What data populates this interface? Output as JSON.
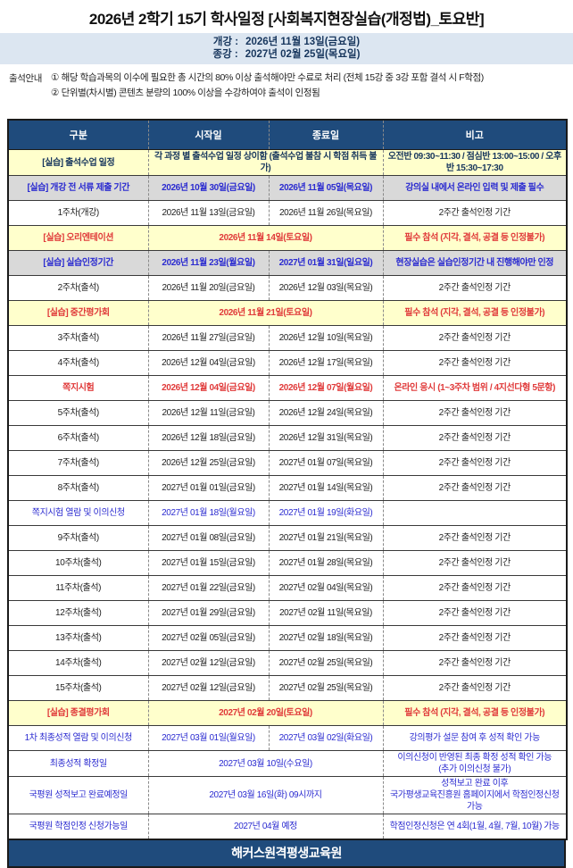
{
  "title": "2026년 2학기 15기 학사일정 [사회복지현장실습(개정법)_토요반]",
  "term": {
    "start_label": "개강 :",
    "start_value": "2026년 11월 13일(금요일)",
    "end_label": "종강 :",
    "end_value": "2027년 02월 25일(목요일)"
  },
  "notice": {
    "label": "출석안내",
    "lines": [
      "① 해당 학습과목의 이수에 필요한 총 시간의 80% 이상 출석해야만 수료로 처리 (전체 15강 중 3강 포함 결석 시 F학점)",
      "② 단위별(차시별) 콘텐츠 분량의 100% 이상을 수강하여야 출석이 인정됨"
    ]
  },
  "table": {
    "headers": [
      "구분",
      "시작일",
      "종료일",
      "비고"
    ],
    "rows": [
      {
        "category": "[실습] 출석수업 일정",
        "start": "각 과정 별 출석수업 일정 상이함 (출석수업 불참 시 학점 취득 불가)",
        "end": "",
        "remark": "오전반 09:30~11:30 / 점심반 13:00~15:00 / 오후반 15:30~17:30",
        "style": "yellow-navy",
        "merged": true
      },
      {
        "category": "[실습] 개강 전 서류 제출 기간",
        "start": "2026년 10월 30일(금요일)",
        "end": "2026년 11월 05일(목요일)",
        "remark": "강의실 내에서 온라인 입력 및 제출 필수",
        "style": "gray-blue",
        "merged": false
      },
      {
        "category": "1주차(개강)",
        "start": "2026년 11월 13일(금요일)",
        "end": "2026년 11월 26일(목요일)",
        "remark": "2주간 출석인정 기간",
        "style": "white-black",
        "merged": false
      },
      {
        "category": "[실습] 오리엔테이션",
        "start": "2026년 11월 14일(토요일)",
        "end": "",
        "remark": "필수 참석 (지각, 결석, 공결 등 인정불가)",
        "style": "yellow-red",
        "merged": true
      },
      {
        "category": "[실습] 실습인정기간",
        "start": "2026년 11월 23일(월요일)",
        "end": "2027년 01월 31일(일요일)",
        "remark": "현장실습은 실습인정기간 내 진행해야만 인정",
        "style": "gray-blue",
        "merged": false
      },
      {
        "category": "2주차(출석)",
        "start": "2026년 11월 20일(금요일)",
        "end": "2026년 12월 03일(목요일)",
        "remark": "2주간 출석인정 기간",
        "style": "white-black",
        "merged": false
      },
      {
        "category": "[실습] 중간평가회",
        "start": "2026년 11월 21일(토요일)",
        "end": "",
        "remark": "필수 참석 (지각, 결석, 공결 등 인정불가)",
        "style": "yellow-red",
        "merged": true
      },
      {
        "category": "3주차(출석)",
        "start": "2026년 11월 27일(금요일)",
        "end": "2026년 12월 10일(목요일)",
        "remark": "2주간 출석인정 기간",
        "style": "white-black",
        "merged": false
      },
      {
        "category": "4주차(출석)",
        "start": "2026년 12월 04일(금요일)",
        "end": "2026년 12월 17일(목요일)",
        "remark": "2주간 출석인정 기간",
        "style": "white-black",
        "merged": false
      },
      {
        "category": "쪽지시험",
        "start": "2026년 12월 04일(금요일)",
        "end": "2026년 12월 07일(월요일)",
        "remark": "온라인 응시 (1~3주차 범위 / 4지선다형 5문항)",
        "style": "white-red",
        "merged": false
      },
      {
        "category": "5주차(출석)",
        "start": "2026년 12월 11일(금요일)",
        "end": "2026년 12월 24일(목요일)",
        "remark": "2주간 출석인정 기간",
        "style": "white-black",
        "merged": false
      },
      {
        "category": "6주차(출석)",
        "start": "2026년 12월 18일(금요일)",
        "end": "2026년 12월 31일(목요일)",
        "remark": "2주간 출석인정 기간",
        "style": "white-black",
        "merged": false
      },
      {
        "category": "7주차(출석)",
        "start": "2026년 12월 25일(금요일)",
        "end": "2027년 01월 07일(목요일)",
        "remark": "2주간 출석인정 기간",
        "style": "white-black",
        "merged": false
      },
      {
        "category": "8주차(출석)",
        "start": "2027년 01월 01일(금요일)",
        "end": "2027년 01월 14일(목요일)",
        "remark": "2주간 출석인정 기간",
        "style": "white-black",
        "merged": false
      },
      {
        "category": "쪽지시험 열람 및 이의신청",
        "start": "2027년 01월 18일(월요일)",
        "end": "2027년 01월 19일(화요일)",
        "remark": "",
        "style": "white-blue",
        "merged": false
      },
      {
        "category": "9주차(출석)",
        "start": "2027년 01월 08일(금요일)",
        "end": "2027년 01월 21일(목요일)",
        "remark": "2주간 출석인정 기간",
        "style": "white-black",
        "merged": false
      },
      {
        "category": "10주차(출석)",
        "start": "2027년 01월 15일(금요일)",
        "end": "2027년 01월 28일(목요일)",
        "remark": "2주간 출석인정 기간",
        "style": "white-black",
        "merged": false
      },
      {
        "category": "11주차(출석)",
        "start": "2027년 01월 22일(금요일)",
        "end": "2027년 02월 04일(목요일)",
        "remark": "2주간 출석인정 기간",
        "style": "white-black",
        "merged": false
      },
      {
        "category": "12주차(출석)",
        "start": "2027년 01월 29일(금요일)",
        "end": "2027년 02월 11일(목요일)",
        "remark": "2주간 출석인정 기간",
        "style": "white-black",
        "merged": false
      },
      {
        "category": "13주차(출석)",
        "start": "2027년 02월 05일(금요일)",
        "end": "2027년 02월 18일(목요일)",
        "remark": "2주간 출석인정 기간",
        "style": "white-black",
        "merged": false
      },
      {
        "category": "14주차(출석)",
        "start": "2027년 02월 12일(금요일)",
        "end": "2027년 02월 25일(목요일)",
        "remark": "2주간 출석인정 기간",
        "style": "white-black",
        "merged": false
      },
      {
        "category": "15주차(출석)",
        "start": "2027년 02월 12일(금요일)",
        "end": "2027년 02월 25일(목요일)",
        "remark": "2주간 출석인정 기간",
        "style": "white-black",
        "merged": false
      },
      {
        "category": "[실습] 종결평가회",
        "start": "2027년 02월 20일(토요일)",
        "end": "",
        "remark": "필수 참석 (지각, 결석, 공결 등 인정불가)",
        "style": "yellow-red",
        "merged": true
      },
      {
        "category": "1차 최종성적 열람 및 이의신청",
        "start": "2027년 03월 01일(월요일)",
        "end": "2027년 03월 02일(화요일)",
        "remark": "강의평가 설문 참여 후 성적 확인 가능",
        "style": "white-blue",
        "merged": false
      },
      {
        "category": "최종성적 확정일",
        "start": "2027년 03월 10일(수요일)",
        "end": "",
        "remark": "이의신청이 반영된 최종 확정 성적 확인 가능\n(추가 이의신청 불가)",
        "style": "white-blue",
        "merged": true
      },
      {
        "category": "국평원 성적보고 완료예정일",
        "start": "2027년 03월 16일(화)  09시까지",
        "end": "",
        "remark": "성적보고 완료 이후\n국가평생교육진흥원 홈페이지에서 학점인정신청 가능",
        "style": "white-blue",
        "merged": true
      },
      {
        "category": "국평원 학점인정 신청가능일",
        "start": "2027년 04월 예정",
        "end": "",
        "remark": "학점인정신청은 연 4회(1월, 4월, 7월, 10월) 가능",
        "style": "white-blue",
        "merged": true
      }
    ]
  },
  "footer": "해커스원격평생교육원",
  "colors": {
    "header_bg": "#1F4B7C",
    "footer_bg": "#1F4B7C",
    "term_band_bg": "#DCE6F1",
    "highlight_yellow": "#FFFFCC",
    "period_gray": "#D9D9D9",
    "alert_red": "#E03A3A",
    "info_blue": "#2B2BD0",
    "navy_text": "#17365D"
  }
}
